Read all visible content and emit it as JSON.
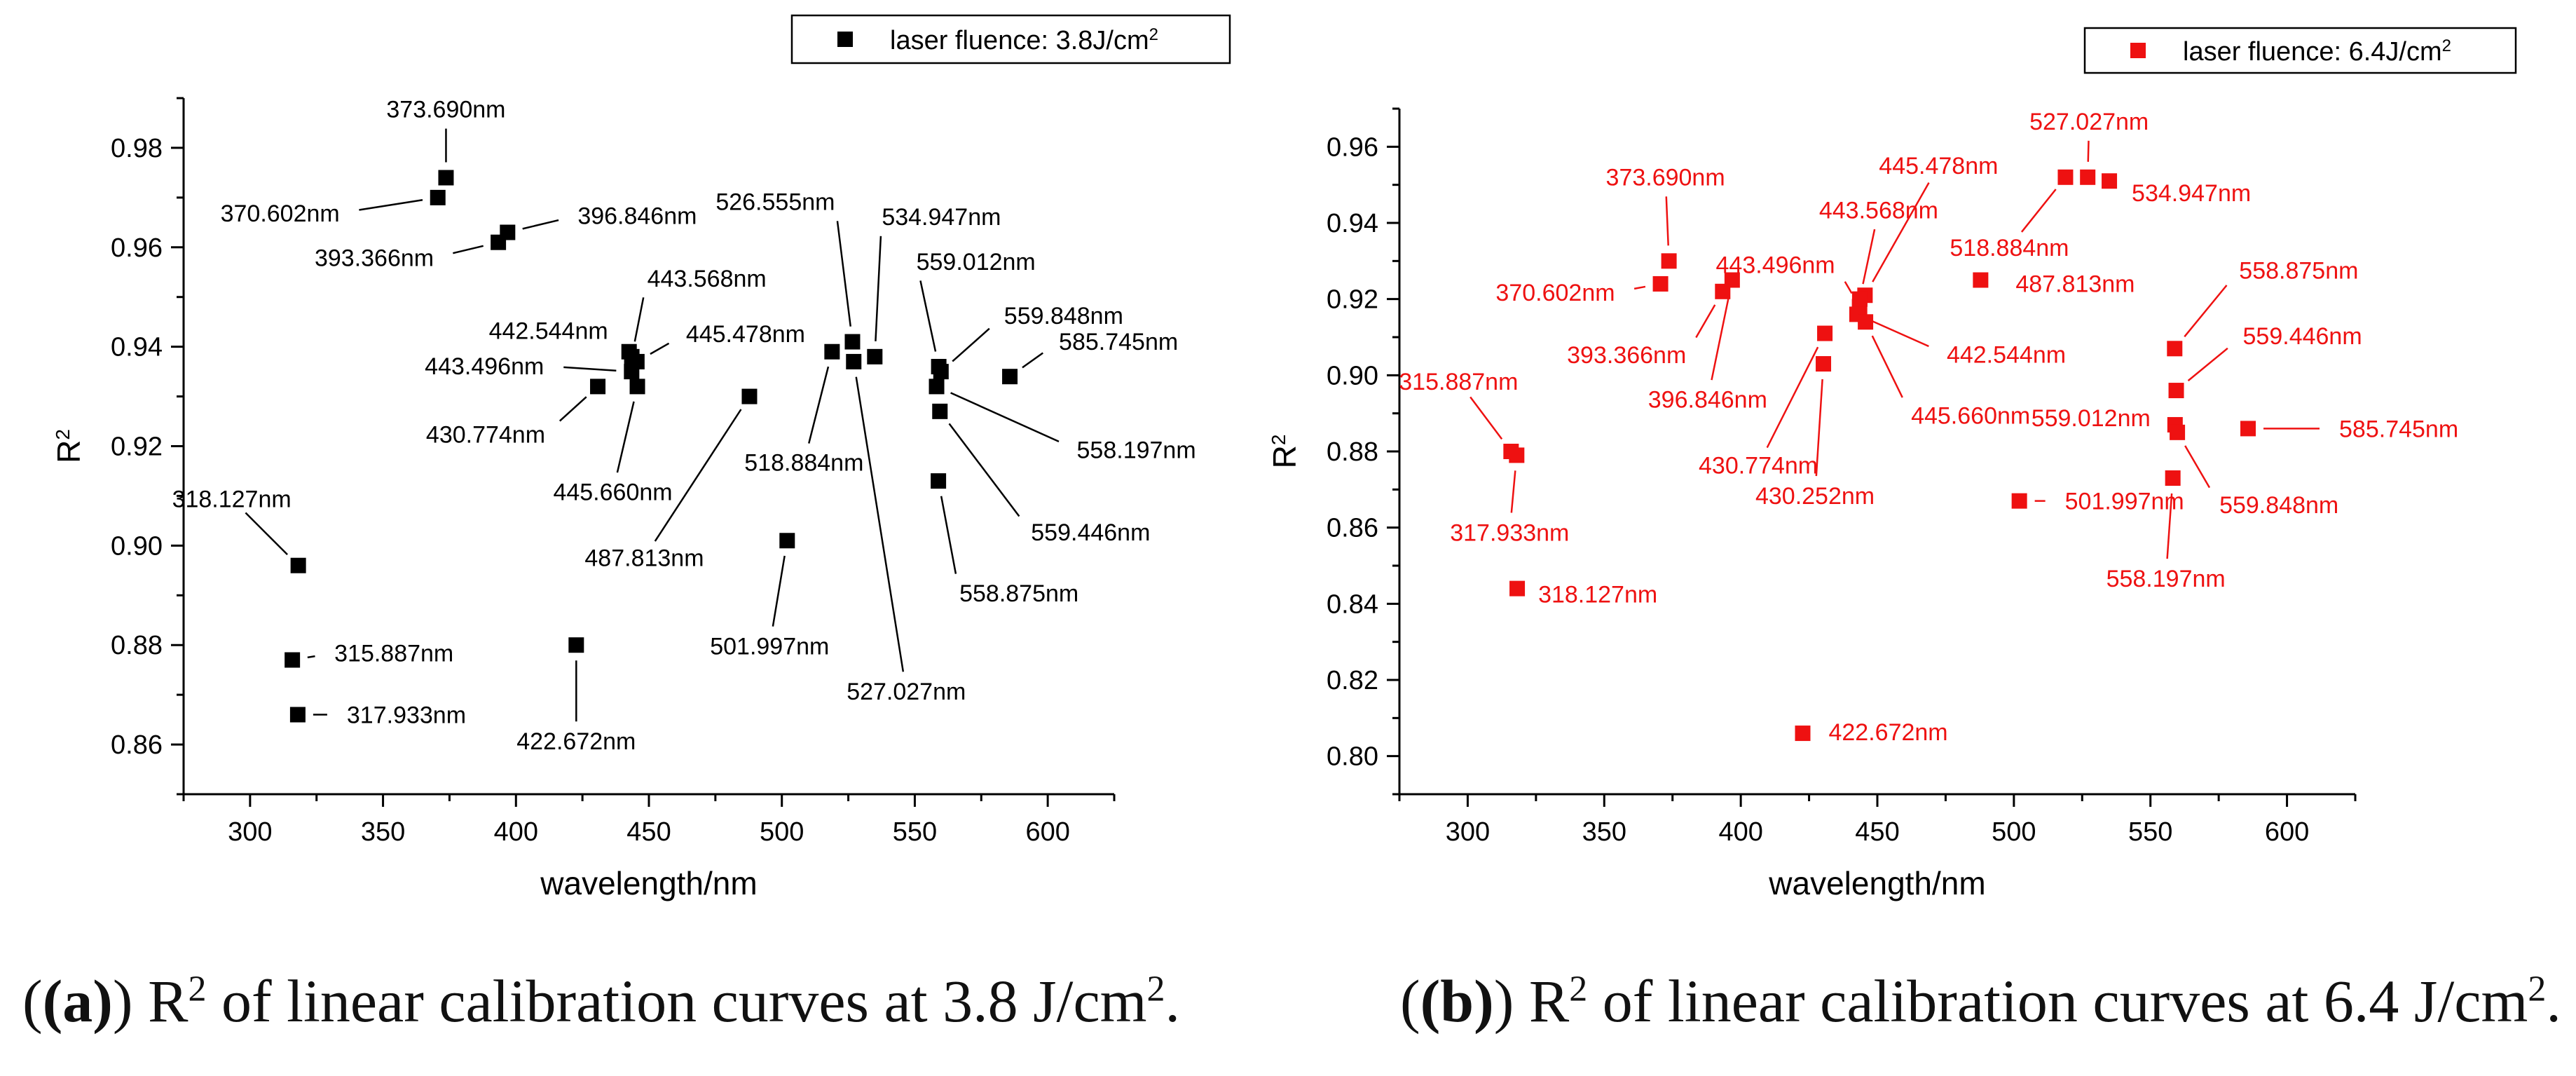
{
  "chart_data": [
    {
      "type": "scatter",
      "title": "",
      "xlabel": "wavelength/nm",
      "ylabel": "R",
      "ylabel_sup": "2",
      "xlim": [
        275,
        625
      ],
      "ylim": [
        0.85,
        0.99
      ],
      "xticks": [
        "300",
        "350",
        "400",
        "450",
        "500",
        "550",
        "600"
      ],
      "yticks": [
        "0.86",
        "0.88",
        "0.90",
        "0.92",
        "0.94",
        "0.96",
        "0.98"
      ],
      "color": "#000000",
      "legend": {
        "text": "laser fluence: 3.8J/cm",
        "sup": "2",
        "position": "top-center"
      },
      "points": [
        {
          "x": 373.69,
          "y": 0.974,
          "label": "373.690nm"
        },
        {
          "x": 370.602,
          "y": 0.97,
          "label": "370.602nm"
        },
        {
          "x": 396.846,
          "y": 0.963,
          "label": "396.846nm"
        },
        {
          "x": 393.366,
          "y": 0.961,
          "label": "393.366nm"
        },
        {
          "x": 443.568,
          "y": 0.938,
          "label": "443.568nm"
        },
        {
          "x": 442.544,
          "y": 0.939,
          "label": "442.544nm"
        },
        {
          "x": 445.478,
          "y": 0.937,
          "label": "445.478nm"
        },
        {
          "x": 443.496,
          "y": 0.935,
          "label": "443.496nm"
        },
        {
          "x": 430.774,
          "y": 0.932,
          "label": "430.774nm"
        },
        {
          "x": 445.66,
          "y": 0.932,
          "label": "445.660nm"
        },
        {
          "x": 487.813,
          "y": 0.93,
          "label": "487.813nm"
        },
        {
          "x": 526.555,
          "y": 0.941,
          "label": "526.555nm"
        },
        {
          "x": 534.947,
          "y": 0.938,
          "label": "534.947nm"
        },
        {
          "x": 518.884,
          "y": 0.939,
          "label": "518.884nm"
        },
        {
          "x": 527.027,
          "y": 0.937,
          "label": "527.027nm"
        },
        {
          "x": 559.012,
          "y": 0.936,
          "label": "559.012nm"
        },
        {
          "x": 559.848,
          "y": 0.935,
          "label": "559.848nm"
        },
        {
          "x": 585.745,
          "y": 0.934,
          "label": "585.745nm"
        },
        {
          "x": 558.197,
          "y": 0.932,
          "label": "558.197nm"
        },
        {
          "x": 559.446,
          "y": 0.927,
          "label": "559.446nm"
        },
        {
          "x": 558.875,
          "y": 0.913,
          "label": "558.875nm"
        },
        {
          "x": 501.997,
          "y": 0.901,
          "label": "501.997nm"
        },
        {
          "x": 318.127,
          "y": 0.896,
          "label": "318.127nm"
        },
        {
          "x": 315.887,
          "y": 0.877,
          "label": "315.887nm"
        },
        {
          "x": 317.933,
          "y": 0.866,
          "label": "317.933nm"
        },
        {
          "x": 422.672,
          "y": 0.88,
          "label": "422.672nm"
        }
      ]
    },
    {
      "type": "scatter",
      "title": "",
      "xlabel": "wavelength/nm",
      "ylabel": "R",
      "ylabel_sup": "2",
      "xlim": [
        275,
        625
      ],
      "ylim": [
        0.79,
        0.97
      ],
      "xticks": [
        "300",
        "350",
        "400",
        "450",
        "500",
        "550",
        "600"
      ],
      "yticks": [
        "0.80",
        "0.82",
        "0.84",
        "0.86",
        "0.88",
        "0.90",
        "0.92",
        "0.94",
        "0.96"
      ],
      "color": "#ee1111",
      "legend": {
        "text": "laser fluence: 6.4J/cm",
        "sup": "2",
        "position": "top-right"
      },
      "points": [
        {
          "x": 373.69,
          "y": 0.93,
          "label": "373.690nm"
        },
        {
          "x": 370.602,
          "y": 0.924,
          "label": "370.602nm"
        },
        {
          "x": 393.366,
          "y": 0.922,
          "label": "393.366nm"
        },
        {
          "x": 396.846,
          "y": 0.925,
          "label": "396.846nm"
        },
        {
          "x": 445.478,
          "y": 0.921,
          "label": "445.478nm"
        },
        {
          "x": 443.568,
          "y": 0.92,
          "label": "443.568nm"
        },
        {
          "x": 443.496,
          "y": 0.918,
          "label": "443.496nm"
        },
        {
          "x": 442.544,
          "y": 0.916,
          "label": "442.544nm"
        },
        {
          "x": 445.66,
          "y": 0.914,
          "label": "445.660nm"
        },
        {
          "x": 430.774,
          "y": 0.911,
          "label": "430.774nm"
        },
        {
          "x": 430.252,
          "y": 0.903,
          "label": "430.252nm"
        },
        {
          "x": 518.884,
          "y": 0.952,
          "label": "518.884nm"
        },
        {
          "x": 527.027,
          "y": 0.952,
          "label": "527.027nm"
        },
        {
          "x": 534.947,
          "y": 0.951,
          "label": "534.947nm"
        },
        {
          "x": 487.813,
          "y": 0.925,
          "label": "487.813nm"
        },
        {
          "x": 558.875,
          "y": 0.907,
          "label": "558.875nm"
        },
        {
          "x": 559.446,
          "y": 0.896,
          "label": "559.446nm"
        },
        {
          "x": 559.012,
          "y": 0.887,
          "label": "559.012nm"
        },
        {
          "x": 559.848,
          "y": 0.885,
          "label": "559.848nm"
        },
        {
          "x": 585.745,
          "y": 0.886,
          "label": "585.745nm"
        },
        {
          "x": 558.197,
          "y": 0.873,
          "label": "558.197nm"
        },
        {
          "x": 501.997,
          "y": 0.867,
          "label": "501.997nm"
        },
        {
          "x": 315.887,
          "y": 0.88,
          "label": "315.887nm"
        },
        {
          "x": 317.933,
          "y": 0.879,
          "label": "317.933nm"
        },
        {
          "x": 318.127,
          "y": 0.844,
          "label": "318.127nm"
        },
        {
          "x": 422.672,
          "y": 0.806,
          "label": "422.672nm"
        }
      ]
    }
  ],
  "captions": [
    {
      "letter": "(a)",
      "r": "R",
      "sup": "2",
      "text": " of linear calibration curves at 3.8 J/cm",
      "sup2": "2",
      "end": "."
    },
    {
      "letter": "(b)",
      "r": "R",
      "sup": "2",
      "text": " of linear calibration curves at 6.4 J/cm",
      "sup2": "2",
      "end": "."
    }
  ]
}
